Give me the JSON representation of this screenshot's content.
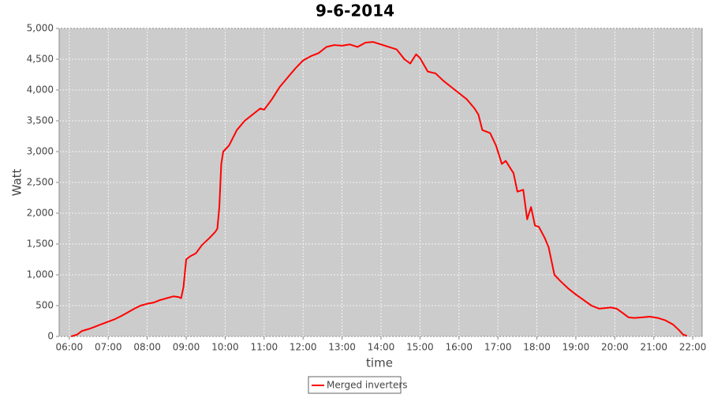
{
  "chart_data": {
    "type": "line",
    "title": "9-6-2014",
    "xlabel": "time",
    "ylabel": "Watt",
    "x": [
      6.05,
      6.2,
      6.33,
      6.5,
      6.67,
      6.83,
      7.0,
      7.17,
      7.33,
      7.5,
      7.67,
      7.83,
      8.0,
      8.17,
      8.33,
      8.5,
      8.67,
      8.8,
      8.87,
      8.93,
      9.0,
      9.1,
      9.25,
      9.4,
      9.6,
      9.75,
      9.8,
      9.85,
      9.9,
      9.95,
      10.1,
      10.3,
      10.5,
      10.7,
      10.9,
      11.0,
      11.2,
      11.4,
      11.6,
      11.8,
      12.0,
      12.2,
      12.4,
      12.6,
      12.8,
      13.0,
      13.2,
      13.4,
      13.6,
      13.8,
      14.0,
      14.2,
      14.4,
      14.6,
      14.75,
      14.9,
      15.0,
      15.2,
      15.4,
      15.6,
      15.8,
      16.0,
      16.2,
      16.4,
      16.5,
      16.6,
      16.8,
      16.95,
      17.1,
      17.2,
      17.4,
      17.5,
      17.65,
      17.75,
      17.85,
      17.95,
      18.05,
      18.2,
      18.3,
      18.45,
      18.6,
      18.8,
      19.0,
      19.2,
      19.4,
      19.6,
      19.75,
      19.9,
      20.05,
      20.2,
      20.35,
      20.5,
      20.7,
      20.9,
      21.1,
      21.3,
      21.5,
      21.65,
      21.75,
      21.85
    ],
    "series": [
      {
        "name": "Merged inverters",
        "color": "#ff0000",
        "values": [
          0,
          30,
          90,
          120,
          160,
          200,
          240,
          280,
          330,
          390,
          450,
          500,
          530,
          550,
          590,
          620,
          650,
          640,
          620,
          800,
          1250,
          1300,
          1350,
          1480,
          1600,
          1700,
          1750,
          2100,
          2800,
          3000,
          3100,
          3350,
          3500,
          3600,
          3700,
          3680,
          3850,
          4050,
          4200,
          4350,
          4480,
          4550,
          4600,
          4700,
          4730,
          4720,
          4740,
          4700,
          4770,
          4780,
          4740,
          4700,
          4660,
          4500,
          4430,
          4580,
          4520,
          4300,
          4270,
          4150,
          4050,
          3950,
          3850,
          3700,
          3600,
          3350,
          3300,
          3100,
          2800,
          2850,
          2650,
          2350,
          2380,
          1900,
          2100,
          1800,
          1780,
          1600,
          1450,
          1000,
          900,
          780,
          680,
          590,
          500,
          450,
          460,
          470,
          450,
          380,
          310,
          300,
          310,
          320,
          300,
          260,
          190,
          100,
          30,
          10
        ]
      }
    ],
    "xlim": [
      5.74,
      22.24
    ],
    "ylim": [
      0,
      5000
    ],
    "xticks": [
      {
        "value": 6,
        "label": "06:00"
      },
      {
        "value": 7,
        "label": "07:00"
      },
      {
        "value": 8,
        "label": "08:00"
      },
      {
        "value": 9,
        "label": "09:00"
      },
      {
        "value": 10,
        "label": "10:00"
      },
      {
        "value": 11,
        "label": "11:00"
      },
      {
        "value": 12,
        "label": "12:00"
      },
      {
        "value": 13,
        "label": "13:00"
      },
      {
        "value": 14,
        "label": "14:00"
      },
      {
        "value": 15,
        "label": "15:00"
      },
      {
        "value": 16,
        "label": "16:00"
      },
      {
        "value": 17,
        "label": "17:00"
      },
      {
        "value": 18,
        "label": "18:00"
      },
      {
        "value": 19,
        "label": "19:00"
      },
      {
        "value": 20,
        "label": "20:00"
      },
      {
        "value": 21,
        "label": "21:00"
      },
      {
        "value": 22,
        "label": "22:00"
      }
    ],
    "yticks": [
      0,
      500,
      {
        "value": 1000,
        "label": "1,000"
      },
      {
        "value": 1500,
        "label": "1,500"
      },
      {
        "value": 2000,
        "label": "2,000"
      },
      {
        "value": 2500,
        "label": "2,500"
      },
      {
        "value": 3000,
        "label": "3,000"
      },
      {
        "value": 3500,
        "label": "3,500"
      },
      {
        "value": 4000,
        "label": "4,000"
      },
      {
        "value": 4500,
        "label": "4,500"
      },
      {
        "value": 5000,
        "label": "5,000"
      }
    ],
    "grid": true
  }
}
